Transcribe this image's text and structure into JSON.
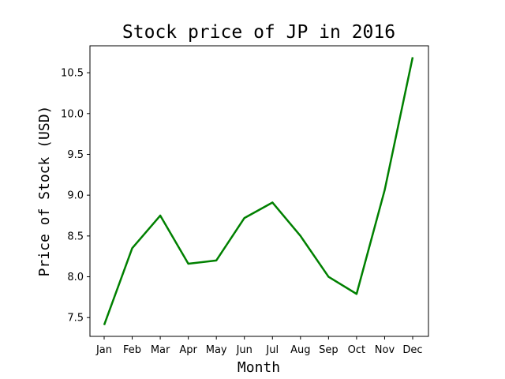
{
  "chart_data": {
    "type": "line",
    "title": "Stock price of JP in 2016",
    "xlabel": "Month",
    "ylabel": "Price of Stock (USD)",
    "categories": [
      "Jan",
      "Feb",
      "Mar",
      "Apr",
      "May",
      "Jun",
      "Jul",
      "Aug",
      "Sep",
      "Oct",
      "Nov",
      "Dec"
    ],
    "series": [
      {
        "values": [
          7.41,
          8.35,
          8.75,
          8.16,
          8.2,
          8.72,
          8.91,
          8.5,
          8.0,
          7.79,
          9.06,
          10.69
        ],
        "color": "#008000"
      }
    ],
    "ylim": [
      7.27,
      10.83
    ],
    "yticks": [
      7.5,
      8.0,
      8.5,
      9.0,
      9.5,
      10.0,
      10.5
    ],
    "ytick_labels": [
      "7.5",
      "8.0",
      "8.5",
      "9.0",
      "9.5",
      "10.0",
      "10.5"
    ],
    "grid": false,
    "legend": "none"
  }
}
